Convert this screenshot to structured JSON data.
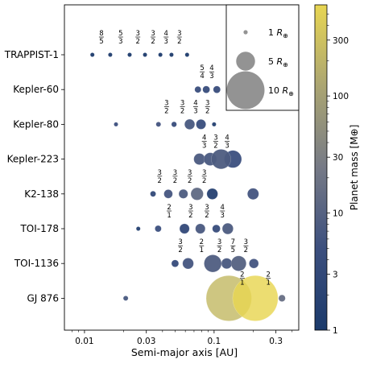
{
  "chart_data": {
    "type": "scatter",
    "xlabel": "Semi-major axis [AU]",
    "xscale": "log",
    "xlim": [
      0.007,
      0.45
    ],
    "x_ticks": [
      {
        "value": 0.01,
        "label": "0.01"
      },
      {
        "value": 0.03,
        "label": "0.03"
      },
      {
        "value": 0.1,
        "label": "0.1"
      },
      {
        "value": 0.3,
        "label": "0.3"
      }
    ],
    "colorbar": {
      "label": "Planet mass [M⊕]",
      "scale": "log",
      "range": [
        1,
        600
      ],
      "colors": [
        "#1b3a6b",
        "#3c4f7e",
        "#767a86",
        "#aba572",
        "#e8d652"
      ],
      "ticks": [
        {
          "value": 1,
          "label": "1"
        },
        {
          "value": 3,
          "label": "3"
        },
        {
          "value": 10,
          "label": "10"
        },
        {
          "value": 30,
          "label": "30"
        },
        {
          "value": 100,
          "label": "100"
        },
        {
          "value": 300,
          "label": "300"
        }
      ]
    },
    "legend": {
      "placement": "top-right",
      "entries": [
        {
          "radius": 1,
          "label_prefix": "1 ",
          "label_symbol": "R",
          "label_sub": "⊕"
        },
        {
          "radius": 5,
          "label_prefix": "5 ",
          "label_symbol": "R",
          "label_sub": "⊕"
        },
        {
          "radius": 10,
          "label_prefix": "10 ",
          "label_symbol": "R",
          "label_sub": "⊕"
        }
      ]
    },
    "systems": [
      {
        "name": "TRAPPIST-1",
        "planets": [
          {
            "a": 0.0115,
            "radius": 1.1,
            "mass": 1.0
          },
          {
            "a": 0.0158,
            "radius": 1.1,
            "mass": 1.2
          },
          {
            "a": 0.0223,
            "radius": 0.8,
            "mass": 0.4
          },
          {
            "a": 0.0293,
            "radius": 0.9,
            "mass": 0.7
          },
          {
            "a": 0.0385,
            "radius": 1.0,
            "mass": 0.9
          },
          {
            "a": 0.0469,
            "radius": 1.1,
            "mass": 1.1
          },
          {
            "a": 0.0619,
            "radius": 0.8,
            "mass": 0.3
          }
        ],
        "resonances": [
          {
            "x": 0.0135,
            "num": "8",
            "den": "5"
          },
          {
            "x": 0.019,
            "num": "5",
            "den": "3"
          },
          {
            "x": 0.0258,
            "num": "3",
            "den": "2"
          },
          {
            "x": 0.0338,
            "num": "3",
            "den": "2"
          },
          {
            "x": 0.0426,
            "num": "4",
            "den": "3"
          },
          {
            "x": 0.054,
            "num": "3",
            "den": "2"
          }
        ]
      },
      {
        "name": "Kepler-60",
        "planets": [
          {
            "a": 0.075,
            "radius": 1.7,
            "mass": 4.2
          },
          {
            "a": 0.087,
            "radius": 1.9,
            "mass": 3.8
          },
          {
            "a": 0.105,
            "radius": 1.9,
            "mass": 4.0
          }
        ],
        "resonances": [
          {
            "x": 0.081,
            "num": "5",
            "den": "4"
          },
          {
            "x": 0.096,
            "num": "4",
            "den": "3"
          }
        ]
      },
      {
        "name": "Kepler-80",
        "planets": [
          {
            "a": 0.0175,
            "radius": 1.0,
            "mass": 5.0
          },
          {
            "a": 0.0372,
            "radius": 1.3,
            "mass": 6.0
          },
          {
            "a": 0.0491,
            "radius": 1.4,
            "mass": 4.0
          },
          {
            "a": 0.0648,
            "radius": 2.7,
            "mass": 6.8
          },
          {
            "a": 0.0792,
            "radius": 2.6,
            "mass": 4.1
          },
          {
            "a": 0.1,
            "radius": 1.0,
            "mass": 1.5
          }
        ],
        "resonances": [
          {
            "x": 0.043,
            "num": "3",
            "den": "2"
          },
          {
            "x": 0.057,
            "num": "3",
            "den": "2"
          },
          {
            "x": 0.072,
            "num": "4",
            "den": "3"
          },
          {
            "x": 0.089,
            "num": "3",
            "den": "2"
          }
        ]
      },
      {
        "name": "Kepler-223",
        "planets": [
          {
            "a": 0.0771,
            "radius": 3.0,
            "mass": 7.4
          },
          {
            "a": 0.0934,
            "radius": 3.4,
            "mass": 7.1
          },
          {
            "a": 0.1132,
            "radius": 5.2,
            "mass": 8.0
          },
          {
            "a": 0.1397,
            "radius": 4.6,
            "mass": 4.8
          }
        ],
        "resonances": [
          {
            "x": 0.084,
            "num": "4",
            "den": "3"
          },
          {
            "x": 0.103,
            "num": "3",
            "den": "2"
          },
          {
            "x": 0.126,
            "num": "4",
            "den": "3"
          }
        ]
      },
      {
        "name": "K2-138",
        "planets": [
          {
            "a": 0.0338,
            "radius": 1.5,
            "mass": 3.1
          },
          {
            "a": 0.0443,
            "radius": 2.3,
            "mass": 6.3
          },
          {
            "a": 0.0579,
            "radius": 2.4,
            "mass": 7.9
          },
          {
            "a": 0.0739,
            "radius": 3.3,
            "mass": 13.0
          },
          {
            "a": 0.0969,
            "radius": 2.9,
            "mass": 1.6
          },
          {
            "a": 0.2,
            "radius": 3.0,
            "mass": 6.0
          }
        ],
        "resonances": [
          {
            "x": 0.038,
            "num": "3",
            "den": "2"
          },
          {
            "x": 0.05,
            "num": "3",
            "den": "2"
          },
          {
            "x": 0.065,
            "num": "3",
            "den": "2"
          },
          {
            "x": 0.084,
            "num": "3",
            "den": "2"
          }
        ]
      },
      {
        "name": "TOI-178",
        "planets": [
          {
            "a": 0.026,
            "radius": 1.1,
            "mass": 1.5
          },
          {
            "a": 0.037,
            "radius": 1.7,
            "mass": 4.8
          },
          {
            "a": 0.0591,
            "radius": 2.6,
            "mass": 3.0
          },
          {
            "a": 0.0783,
            "radius": 2.6,
            "mass": 7.0
          },
          {
            "a": 0.104,
            "radius": 2.1,
            "mass": 3.9
          },
          {
            "a": 0.1275,
            "radius": 2.9,
            "mass": 7.7
          }
        ],
        "resonances": [
          {
            "x": 0.045,
            "num": "2",
            "den": "1"
          },
          {
            "x": 0.066,
            "num": "3",
            "den": "2"
          },
          {
            "x": 0.088,
            "num": "3",
            "den": "2"
          },
          {
            "x": 0.116,
            "num": "4",
            "den": "3"
          }
        ]
      },
      {
        "name": "TOI-1136",
        "planets": [
          {
            "a": 0.05,
            "radius": 1.9,
            "mass": 3.5
          },
          {
            "a": 0.063,
            "radius": 2.9,
            "mass": 6.3
          },
          {
            "a": 0.0977,
            "radius": 4.6,
            "mass": 8.3
          },
          {
            "a": 0.1251,
            "radius": 2.8,
            "mass": 7.0
          },
          {
            "a": 0.1547,
            "radius": 4.0,
            "mass": 9.7
          },
          {
            "a": 0.2026,
            "radius": 2.5,
            "mass": 6.0
          }
        ],
        "resonances": [
          {
            "x": 0.055,
            "num": "3",
            "den": "2"
          },
          {
            "x": 0.08,
            "num": "2",
            "den": "1"
          },
          {
            "x": 0.11,
            "num": "3",
            "den": "2"
          },
          {
            "x": 0.14,
            "num": "7",
            "den": "5"
          },
          {
            "x": 0.176,
            "num": "3",
            "den": "2"
          }
        ]
      },
      {
        "name": "GJ 876",
        "planets": [
          {
            "a": 0.0208,
            "radius": 1.3,
            "mass": 6.8
          },
          {
            "a": 0.13,
            "radius": 12.0,
            "mass": 230
          },
          {
            "a": 0.208,
            "radius": 12.0,
            "mass": 760
          },
          {
            "a": 0.334,
            "radius": 1.8,
            "mass": 16
          }
        ],
        "resonances": [
          {
            "x": 0.165,
            "num": "2",
            "den": "1"
          },
          {
            "x": 0.262,
            "num": "2",
            "den": "1"
          }
        ]
      }
    ]
  }
}
